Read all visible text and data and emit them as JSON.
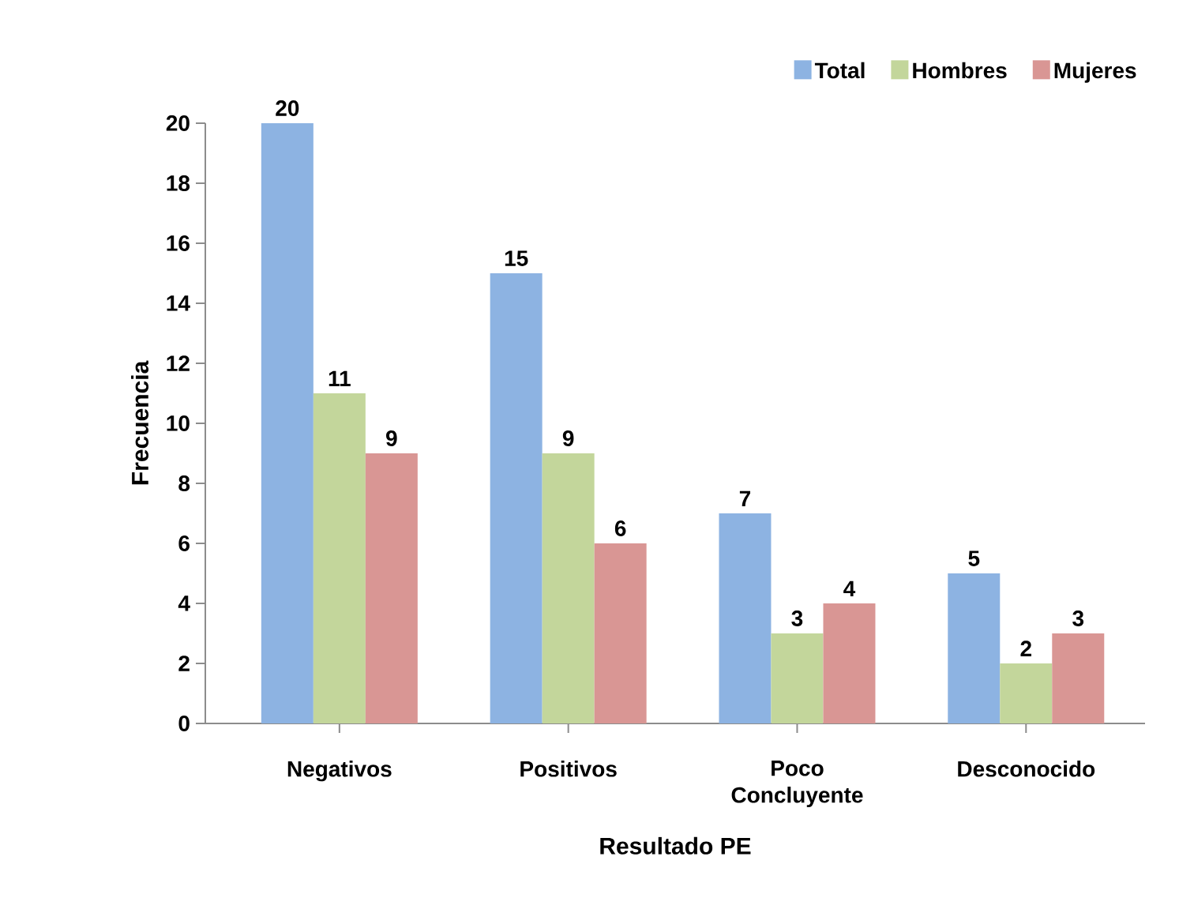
{
  "chart_data": {
    "type": "bar",
    "xlabel": "Resultado PE",
    "ylabel": "Frecuencia",
    "categories": [
      "Negativos",
      "Positivos",
      "Poco Concluyente",
      "Desconocido"
    ],
    "series": [
      {
        "name": "Total",
        "color": "#8db3e2",
        "values": [
          20,
          15,
          7,
          5
        ]
      },
      {
        "name": "Hombres",
        "color": "#c3d69b",
        "values": [
          11,
          9,
          3,
          2
        ]
      },
      {
        "name": "Mujeres",
        "color": "#d99694",
        "values": [
          9,
          6,
          4,
          3
        ]
      }
    ],
    "ylim": [
      0,
      20
    ],
    "yticks": [
      0,
      2,
      4,
      6,
      8,
      10,
      12,
      14,
      16,
      18,
      20
    ],
    "data_labels": true,
    "legend": "top right",
    "grid": false
  }
}
